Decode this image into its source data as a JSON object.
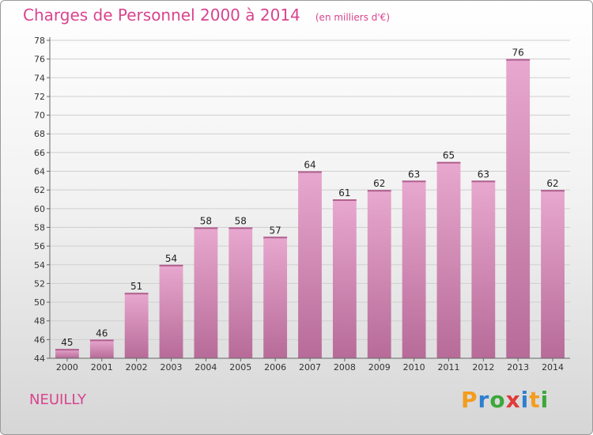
{
  "header": {
    "title": "Charges de Personnel 2000 à 2014",
    "unit": "(en milliers d'€)"
  },
  "footer": {
    "town": "NEUILLY",
    "logo_letters": [
      {
        "char": "P",
        "color": "#f39c1e"
      },
      {
        "char": "r",
        "color": "#2e7fcf"
      },
      {
        "char": "o",
        "color": "#3aa83a"
      },
      {
        "char": "x",
        "color": "#e03a3a"
      },
      {
        "char": "i",
        "color": "#2e7fcf"
      },
      {
        "char": "t",
        "color": "#f39c1e"
      },
      {
        "char": "i",
        "color": "#3aa83a"
      }
    ]
  },
  "chart_data": {
    "type": "bar",
    "title": "Charges de Personnel 2000 à 2014",
    "subtitle": "(en milliers d'€)",
    "categories": [
      "2000",
      "2001",
      "2002",
      "2003",
      "2004",
      "2005",
      "2006",
      "2007",
      "2008",
      "2009",
      "2010",
      "2011",
      "2012",
      "2013",
      "2014"
    ],
    "values": [
      45,
      46,
      51,
      54,
      58,
      58,
      57,
      64,
      61,
      62,
      63,
      65,
      63,
      76,
      62
    ],
    "ylim": [
      44,
      78
    ],
    "yticks": [
      44,
      46,
      48,
      50,
      52,
      54,
      56,
      58,
      60,
      62,
      64,
      66,
      68,
      70,
      72,
      74,
      76,
      78
    ],
    "grid": true,
    "bar_color_top": "#e8a8cf",
    "bar_color_bottom": "#b76b98",
    "label_color": "#222222"
  }
}
